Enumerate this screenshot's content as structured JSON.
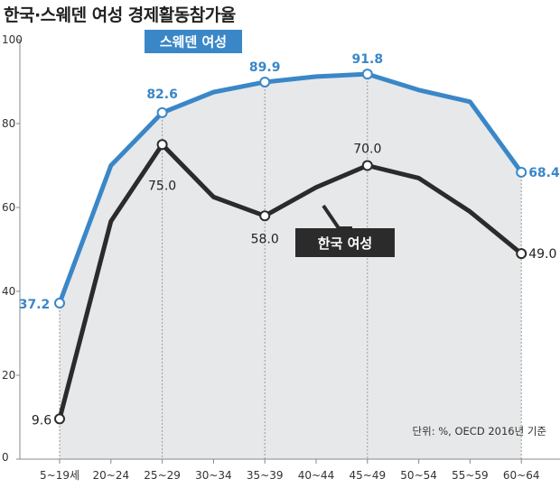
{
  "chart_data": {
    "type": "line",
    "title": "한국·스웨덴 여성 경제활동참가율",
    "source": "단위: %, OECD 2016년 기준",
    "categories": [
      "5~19세",
      "20~24",
      "25~29",
      "30~34",
      "35~39",
      "40~44",
      "45~49",
      "50~54",
      "55~59",
      "60~64"
    ],
    "ylim": [
      0,
      100
    ],
    "yticks": [
      0,
      20,
      40,
      60,
      80,
      100
    ],
    "grid": false,
    "series": [
      {
        "name": "스웨덴 여성",
        "color": "#3a87c8",
        "values": [
          37.2,
          70.0,
          82.6,
          87.5,
          89.9,
          91.2,
          91.8,
          88.0,
          85.2,
          68.4
        ],
        "labels": [
          "37.2",
          "",
          "82.6",
          "",
          "89.9",
          "",
          "91.8",
          "",
          "",
          "68.4"
        ]
      },
      {
        "name": "한국 여성",
        "color": "#2b2b2b",
        "values": [
          9.6,
          56.7,
          75.0,
          62.5,
          58.0,
          64.8,
          70.0,
          67.0,
          59.0,
          49.0
        ],
        "labels": [
          "9.6",
          "",
          "75.0",
          "",
          "58.0",
          "",
          "70.0",
          "",
          "",
          "49.0"
        ]
      }
    ]
  }
}
